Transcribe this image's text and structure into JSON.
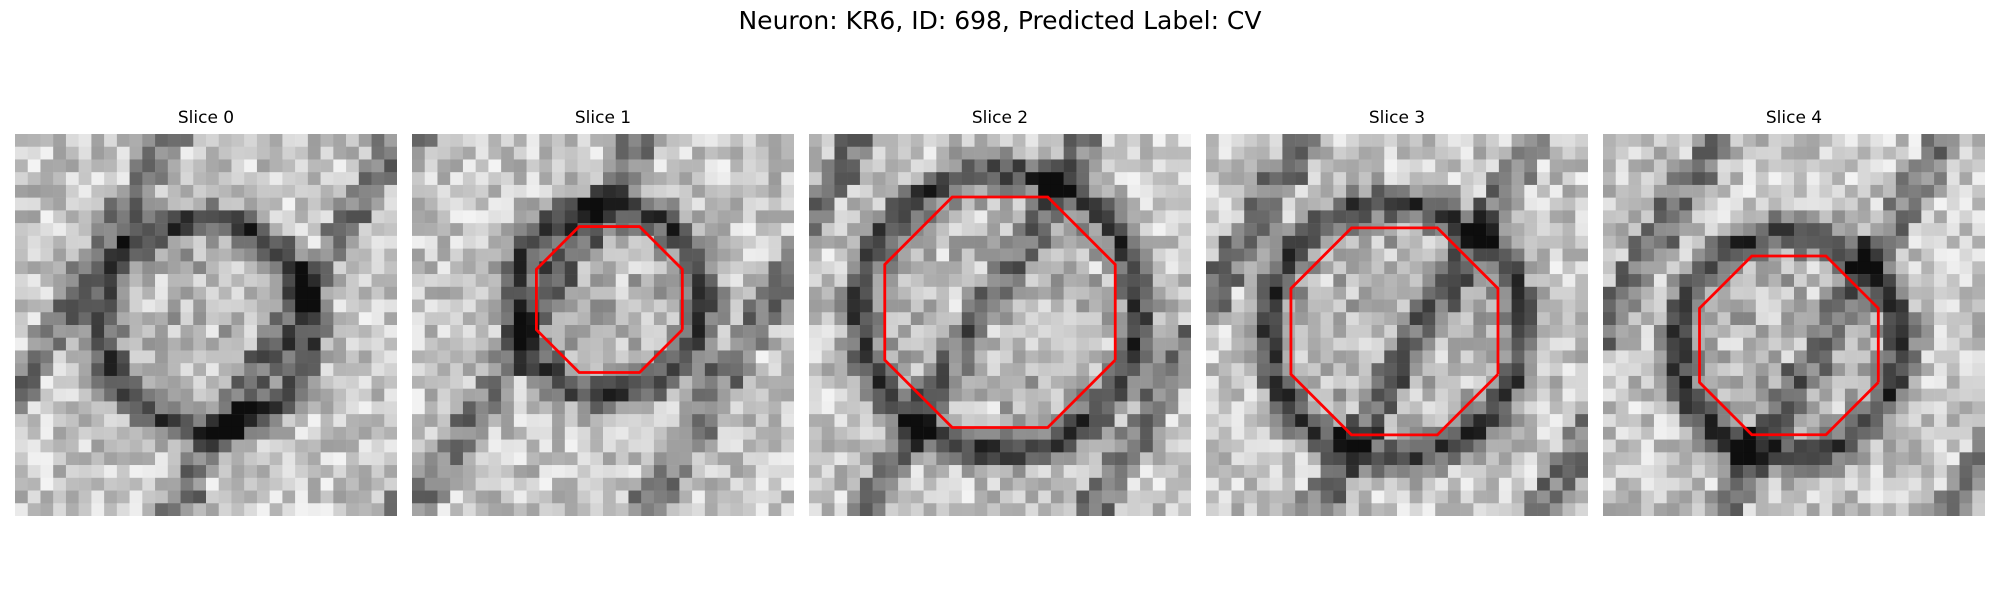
{
  "figure": {
    "title": "Neuron: KR6, ID: 698, Predicted Label: CV",
    "contour_color": "#ff0000"
  },
  "slices": [
    {
      "title": "Slice 0",
      "seed": 11,
      "contour": null
    },
    {
      "title": "Slice 1",
      "seed": 23,
      "contour": {
        "cx": 15.5,
        "cy": 13.0,
        "r": 6.2,
        "style": "octagon"
      }
    },
    {
      "title": "Slice 2",
      "seed": 37,
      "contour": {
        "cx": 15.0,
        "cy": 14.0,
        "r": 9.8,
        "style": "octagon"
      }
    },
    {
      "title": "Slice 3",
      "seed": 51,
      "contour": {
        "cx": 14.8,
        "cy": 15.5,
        "r": 8.8,
        "style": "octagon"
      }
    },
    {
      "title": "Slice 4",
      "seed": 68,
      "contour": {
        "cx": 14.6,
        "cy": 16.6,
        "r": 7.6,
        "style": "octagon"
      }
    }
  ]
}
